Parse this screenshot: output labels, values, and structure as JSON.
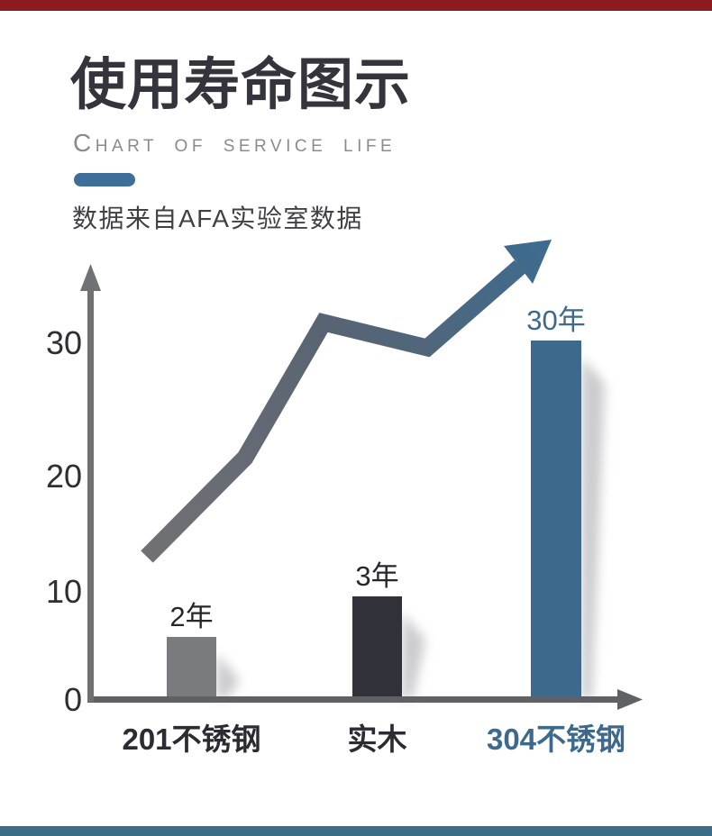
{
  "decor": {
    "top_bar_color": "#8c1b21",
    "bottom_bar_color": "#3d6c86",
    "background": "#ffffff"
  },
  "header": {
    "title": "使用寿命图示",
    "subtitle": "CHART OF SERVICE LIFE",
    "accent_color": "#3e6d99",
    "source_note": "数据来自AFA实验室数据"
  },
  "chart_data": {
    "type": "bar",
    "title": "使用寿命图示",
    "subtitle": "CHART OF SERVICE LIFE",
    "annotation": "数据来自AFA实验室数据",
    "categories": [
      "201不锈钢",
      "实木",
      "304不锈钢"
    ],
    "values": [
      2,
      3,
      30
    ],
    "unit": "年",
    "value_labels": [
      "2年",
      "3年",
      "30年"
    ],
    "bar_colors": [
      "#7a7b7e",
      "#313239",
      "#3d6a8c"
    ],
    "category_colors": [
      "#2b2c33",
      "#2b2c33",
      "#3d6a8c"
    ],
    "value_label_colors": [
      "#26272c",
      "#26272c",
      "#3d6a8c"
    ],
    "yticks": [
      "0",
      "10",
      "20",
      "30"
    ],
    "ylim": [
      0,
      35
    ],
    "xlabel": "",
    "ylabel": "",
    "grid": false,
    "legend": false,
    "axis_color": "#6f7175",
    "tick_color": "#2e2f34",
    "note": "decorative chart, bar heights not to scale",
    "trend_arrow": {
      "shape": "zigzag-rising-arrow",
      "color_start": "#717174",
      "color_mid": "#596473",
      "color_end": "#3d6b8f"
    }
  }
}
